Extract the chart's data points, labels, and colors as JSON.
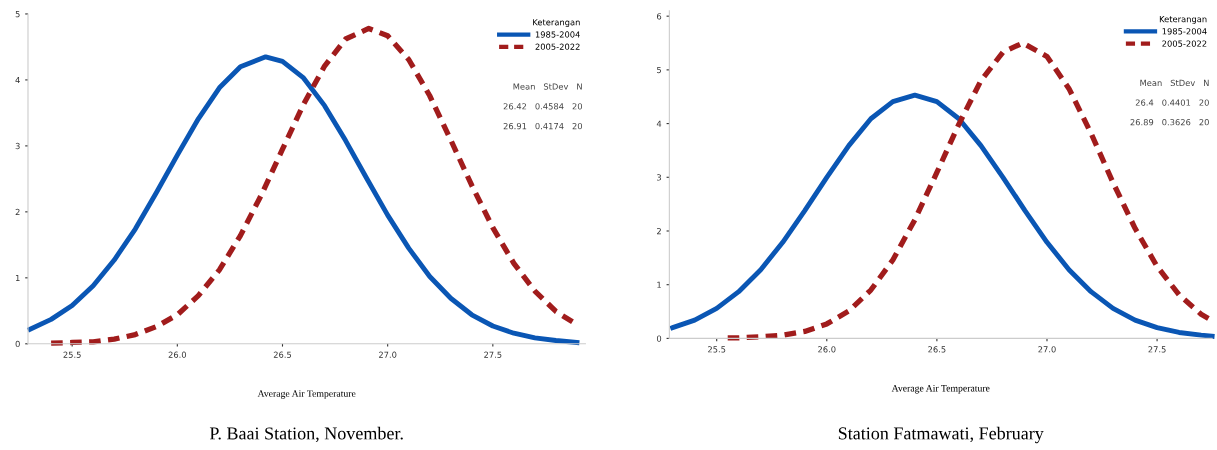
{
  "chart_data": [
    {
      "type": "line",
      "title": "P. Baai Station, November.",
      "xlabel": "Average Air Temperature",
      "legend_title": "Keterangan",
      "legend": "top right",
      "grid": false,
      "marker": "none",
      "xlim": [
        25.29,
        27.94
      ],
      "xticks": [
        {
          "value": 25.5,
          "label": "25.5"
        },
        {
          "value": 26.0,
          "label": "26.0"
        },
        {
          "value": 26.5,
          "label": "26.5"
        },
        {
          "value": 27.0,
          "label": "27.0"
        },
        {
          "value": 27.5,
          "label": "27.5"
        }
      ],
      "ylim": [
        0,
        5
      ],
      "yticks": [
        0,
        1,
        2,
        3,
        4,
        5
      ],
      "annotations": [
        "Mean   StDev   N",
        "26.42   0.4584   20",
        "26.91   0.4174   20"
      ],
      "series": [
        {
          "name": "1985-2004",
          "color": "#0a56b4",
          "line_style": "solid",
          "x": [
            25.3,
            25.4,
            25.5,
            25.6,
            25.7,
            25.8,
            25.9,
            26.0,
            26.1,
            26.2,
            26.3,
            26.42,
            26.5,
            26.6,
            26.7,
            26.8,
            26.9,
            27.0,
            27.1,
            27.2,
            27.3,
            27.4,
            27.5,
            27.6,
            27.7,
            27.8,
            27.9
          ],
          "values": [
            0.22,
            0.37,
            0.58,
            0.88,
            1.27,
            1.74,
            2.29,
            2.86,
            3.41,
            3.88,
            4.2,
            4.35,
            4.28,
            4.03,
            3.61,
            3.08,
            2.51,
            1.95,
            1.45,
            1.02,
            0.69,
            0.44,
            0.27,
            0.16,
            0.09,
            0.05,
            0.02
          ]
        },
        {
          "name": "2005-2022",
          "color": "#a11c1c",
          "line_style": "dashed",
          "x": [
            25.4,
            25.5,
            25.6,
            25.7,
            25.8,
            25.9,
            26.0,
            26.1,
            26.2,
            26.3,
            26.4,
            26.5,
            26.6,
            26.7,
            26.8,
            26.91,
            27.0,
            27.1,
            27.2,
            27.3,
            27.4,
            27.5,
            27.6,
            27.7,
            27.8,
            27.9
          ],
          "values": [
            0.01,
            0.02,
            0.03,
            0.07,
            0.14,
            0.26,
            0.44,
            0.73,
            1.12,
            1.64,
            2.26,
            2.95,
            3.63,
            4.21,
            4.62,
            4.78,
            4.67,
            4.31,
            3.76,
            3.09,
            2.4,
            1.76,
            1.22,
            0.8,
            0.49,
            0.29
          ]
        }
      ]
    },
    {
      "type": "line",
      "title": "Station Fatmawati, February",
      "xlabel": "Average Air Temperature",
      "legend_title": "Keterangan",
      "legend": "top right",
      "grid": false,
      "marker": "none",
      "xlim": [
        25.285,
        27.75
      ],
      "xticks": [
        {
          "value": 25.5,
          "label": "25.5"
        },
        {
          "value": 26.0,
          "label": "26.0"
        },
        {
          "value": 26.5,
          "label": "26.5"
        },
        {
          "value": 27.0,
          "label": "27.0"
        },
        {
          "value": 27.5,
          "label": "27.5"
        }
      ],
      "ylim": [
        0,
        6.1
      ],
      "yticks": [
        0,
        1,
        2,
        3,
        4,
        5,
        6
      ],
      "annotations": [
        "Mean   StDev   N",
        "26.4   0.4401   20",
        "26.89   0.3626   20"
      ],
      "series": [
        {
          "name": "1985-2004",
          "color": "#0a56b4",
          "line_style": "solid",
          "x": [
            25.3,
            25.4,
            25.5,
            25.6,
            25.7,
            25.8,
            25.9,
            26.0,
            26.1,
            26.2,
            26.3,
            26.4,
            26.5,
            26.6,
            26.7,
            26.8,
            26.9,
            27.0,
            27.1,
            27.2,
            27.3,
            27.4,
            27.5,
            27.6,
            27.7,
            27.75
          ],
          "values": [
            0.2,
            0.34,
            0.56,
            0.87,
            1.28,
            1.79,
            2.38,
            3.0,
            3.59,
            4.09,
            4.41,
            4.53,
            4.41,
            4.09,
            3.59,
            3.0,
            2.38,
            1.79,
            1.28,
            0.87,
            0.56,
            0.34,
            0.2,
            0.11,
            0.06,
            0.04
          ]
        },
        {
          "name": "2005-2022",
          "color": "#a11c1c",
          "line_style": "dashed",
          "x": [
            25.55,
            25.6,
            25.7,
            25.8,
            25.9,
            26.0,
            26.1,
            26.2,
            26.3,
            26.4,
            26.5,
            26.6,
            26.7,
            26.8,
            26.89,
            27.0,
            27.1,
            27.2,
            27.3,
            27.4,
            27.5,
            27.6,
            27.7,
            27.75
          ],
          "values": [
            0.01,
            0.01,
            0.03,
            0.06,
            0.13,
            0.27,
            0.51,
            0.9,
            1.46,
            2.21,
            3.09,
            3.99,
            4.8,
            5.33,
            5.5,
            5.25,
            4.65,
            3.82,
            2.9,
            2.05,
            1.34,
            0.81,
            0.45,
            0.33
          ]
        }
      ]
    }
  ]
}
